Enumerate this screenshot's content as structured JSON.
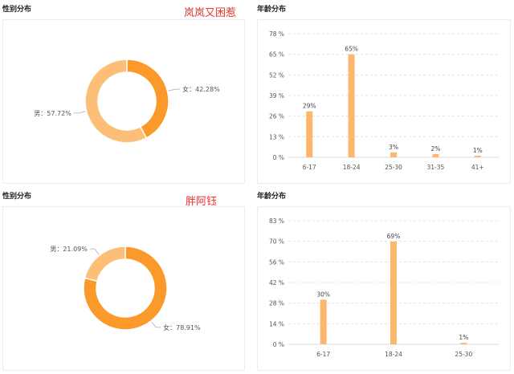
{
  "charts": [
    {
      "gender_title": "性别分布",
      "age_title": "年龄分布",
      "annotation": "岚岚又困惹"
    },
    {
      "gender_title": "性别分布",
      "age_title": "年龄分布",
      "annotation": "胖阿钰"
    }
  ],
  "colors": {
    "female": "#fb9a2a",
    "male": "#fdbf78",
    "bar": "#fdb66d",
    "grid": "#dddddd"
  },
  "chart_data": [
    {
      "type": "pie",
      "title": "性别分布",
      "slices": [
        {
          "name": "女",
          "value": 42.28,
          "label": "女：42.28%"
        },
        {
          "name": "男",
          "value": 57.72,
          "label": "男：57.72%"
        }
      ]
    },
    {
      "type": "bar",
      "title": "年龄分布",
      "categories": [
        "6-17",
        "18-24",
        "25-30",
        "31-35",
        "41+"
      ],
      "values": [
        29,
        65,
        3,
        2,
        1
      ],
      "value_labels": [
        "29%",
        "65%",
        "3%",
        "2%",
        "1%"
      ],
      "yticks": [
        "0 %",
        "13 %",
        "26 %",
        "39 %",
        "52 %",
        "65 %",
        "78 %"
      ],
      "ylim": [
        0,
        78
      ],
      "grid": true
    },
    {
      "type": "pie",
      "title": "性别分布",
      "slices": [
        {
          "name": "女",
          "value": 78.91,
          "label": "女：78.91%"
        },
        {
          "name": "男",
          "value": 21.09,
          "label": "男：21.09%"
        }
      ]
    },
    {
      "type": "bar",
      "title": "年龄分布",
      "categories": [
        "6-17",
        "18-24",
        "25-30"
      ],
      "values": [
        30,
        69,
        1
      ],
      "value_labels": [
        "30%",
        "69%",
        "1%"
      ],
      "yticks": [
        "0 %",
        "14 %",
        "28 %",
        "42 %",
        "56 %",
        "70 %",
        "83 %"
      ],
      "ylim": [
        0,
        83
      ],
      "grid": true
    }
  ]
}
